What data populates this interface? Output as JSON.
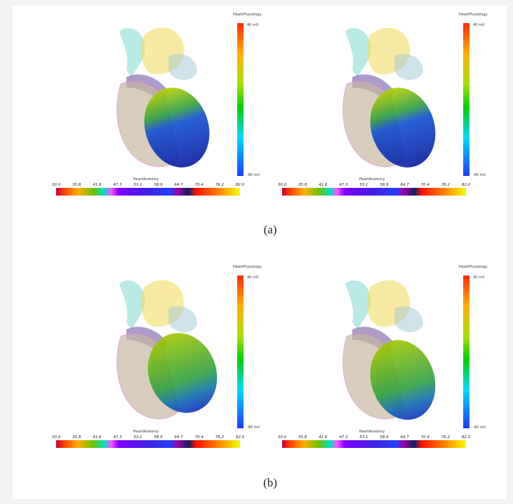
{
  "figure": {
    "panels": [
      {
        "colorbar_title": "HeartPhysiology",
        "max_label": "40 mV",
        "min_label": "-80 mV",
        "anatomy_title": "HeartAnatomy",
        "anatomy_ticks": [
          "30.0",
          "35.8",
          "41.6",
          "47.3",
          "53.1",
          "58.9",
          "64.7",
          "70.4",
          "76.2",
          "82.0"
        ]
      },
      {
        "colorbar_title": "HeartPhysiology",
        "max_label": "40 mV",
        "min_label": "-80 mV",
        "anatomy_title": "HeartAnatomy",
        "anatomy_ticks": [
          "30.0",
          "35.8",
          "41.6",
          "47.3",
          "53.1",
          "58.9",
          "64.7",
          "70.4",
          "76.2",
          "82.0"
        ]
      },
      {
        "colorbar_title": "HeartPhysiology",
        "max_label": "40 mV",
        "min_label": "-80 mV",
        "anatomy_title": "HeartAnatomy",
        "anatomy_ticks": [
          "30.0",
          "35.8",
          "41.6",
          "47.3",
          "53.1",
          "58.9",
          "64.7",
          "70.4",
          "76.2",
          "82.0"
        ]
      },
      {
        "colorbar_title": "HeartPhysiology",
        "max_label": "40 mV",
        "min_label": "-80 mV",
        "anatomy_title": "HeartAnatomy",
        "anatomy_ticks": [
          "30.0",
          "35.8",
          "41.6",
          "47.3",
          "53.1",
          "58.9",
          "64.7",
          "70.4",
          "76.2",
          "82.0"
        ]
      }
    ],
    "captions": [
      "(a)",
      "(b)"
    ]
  }
}
